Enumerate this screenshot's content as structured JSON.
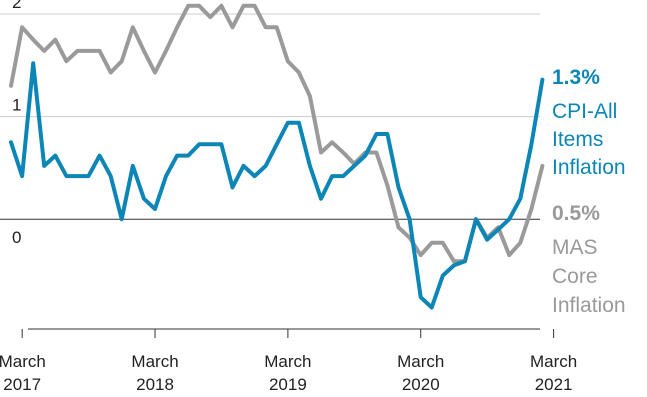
{
  "colors": {
    "cpi": "#0b86b6",
    "mas": "#9a9a9a",
    "grid": "#cccccc",
    "axis": "#333333",
    "text": "#222222"
  },
  "chart_data": {
    "type": "line",
    "title": "",
    "xlabel": "",
    "ylabel": "",
    "xlim": [
      2017.0,
      2021.87
    ],
    "ylim": [
      -1.07,
      2.0
    ],
    "grid": true,
    "legend": "right, end-of-line labels",
    "y_ticks": [
      {
        "value": 2,
        "label": "2"
      },
      {
        "value": 1,
        "label": "1"
      },
      {
        "value": 0,
        "label": "0"
      }
    ],
    "x_ticks": [
      {
        "value": 2017.167,
        "line1": "March",
        "line2": "2017"
      },
      {
        "value": 2018.167,
        "line1": "March",
        "line2": "2018"
      },
      {
        "value": 2019.167,
        "line1": "March",
        "line2": "2019"
      },
      {
        "value": 2020.167,
        "line1": "March",
        "line2": "2020"
      },
      {
        "value": 2021.167,
        "line1": "March",
        "line2": "2021"
      }
    ],
    "series": [
      {
        "name": "MAS Core Inflation",
        "key": "mas",
        "label_value": "0.5%",
        "label_lines": [
          "MAS",
          "Core",
          "Inflation"
        ],
        "x_start": 2017.083,
        "values": [
          1.3,
          1.87,
          1.75,
          1.64,
          1.75,
          1.54,
          1.64,
          1.64,
          1.64,
          1.43,
          1.54,
          1.87,
          1.64,
          1.43,
          1.64,
          1.87,
          2.08,
          2.08,
          1.97,
          2.08,
          1.87,
          2.08,
          2.08,
          1.87,
          1.87,
          1.54,
          1.43,
          1.2,
          0.65,
          0.75,
          0.65,
          0.54,
          0.65,
          0.65,
          0.33,
          -0.08,
          -0.18,
          -0.35,
          -0.23,
          -0.23,
          -0.41,
          -0.41,
          0.0,
          -0.18,
          -0.08,
          -0.35,
          -0.23,
          0.1,
          0.52
        ]
      },
      {
        "name": "CPI-All Items Inflation",
        "key": "cpi",
        "label_value": "1.3%",
        "label_lines": [
          "CPI-All",
          "Items",
          "Inflation"
        ],
        "x_start": 2017.083,
        "values": [
          0.75,
          0.42,
          1.52,
          0.52,
          0.62,
          0.42,
          0.42,
          0.42,
          0.62,
          0.42,
          0.0,
          0.52,
          0.2,
          0.1,
          0.42,
          0.62,
          0.62,
          0.73,
          0.73,
          0.73,
          0.31,
          0.52,
          0.42,
          0.52,
          0.73,
          0.94,
          0.94,
          0.52,
          0.2,
          0.42,
          0.42,
          0.52,
          0.62,
          0.83,
          0.83,
          0.31,
          0.0,
          -0.76,
          -0.86,
          -0.55,
          -0.45,
          -0.41,
          0.0,
          -0.2,
          -0.1,
          0.0,
          0.2,
          0.73,
          1.36
        ]
      }
    ]
  }
}
